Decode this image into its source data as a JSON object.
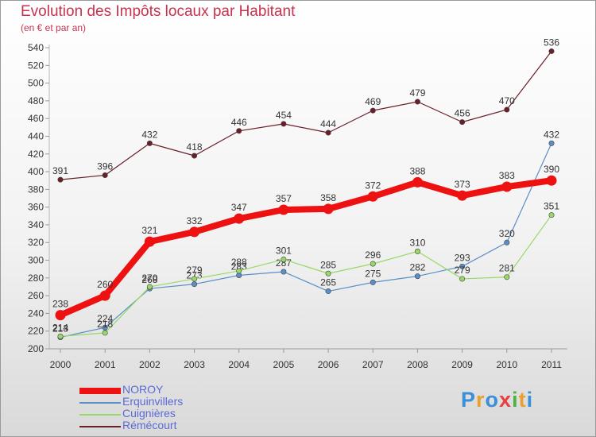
{
  "title": "Evolution des Impôts locaux par Habitant",
  "subtitle": "(en € et par an)",
  "logo": {
    "p": "P",
    "r": "r",
    "o": "o",
    "x": "x",
    "i": "i",
    "t": "t",
    "i2": "i"
  },
  "chart_data": {
    "type": "line",
    "categories": [
      "2000",
      "2001",
      "2002",
      "2003",
      "2004",
      "2005",
      "2006",
      "2007",
      "2008",
      "2009",
      "2010",
      "2011"
    ],
    "ylim": [
      200,
      540
    ],
    "yticks": [
      200,
      220,
      240,
      260,
      280,
      300,
      320,
      340,
      360,
      380,
      400,
      420,
      440,
      460,
      480,
      500,
      520,
      540
    ],
    "series": [
      {
        "name": "Rémécourt",
        "color": "#6b1e28",
        "values": [
          391,
          396,
          432,
          418,
          446,
          454,
          444,
          469,
          479,
          456,
          470,
          536
        ]
      },
      {
        "name": "Erquinvillers",
        "color": "#5a8fc8",
        "values": [
          213,
          224,
          268,
          273,
          283,
          287,
          265,
          275,
          282,
          293,
          320,
          432
        ]
      },
      {
        "name": "Cuignières",
        "color": "#98d868",
        "values": [
          214,
          218,
          270,
          279,
          288,
          301,
          285,
          296,
          310,
          279,
          281,
          351
        ]
      },
      {
        "name": "NOROY",
        "color": "#ee1111",
        "values": [
          238,
          260,
          321,
          332,
          347,
          357,
          358,
          372,
          388,
          373,
          383,
          390
        ]
      }
    ],
    "legend": [
      "NOROY",
      "Erquinvillers",
      "Cuignières",
      "Rémécourt"
    ]
  }
}
